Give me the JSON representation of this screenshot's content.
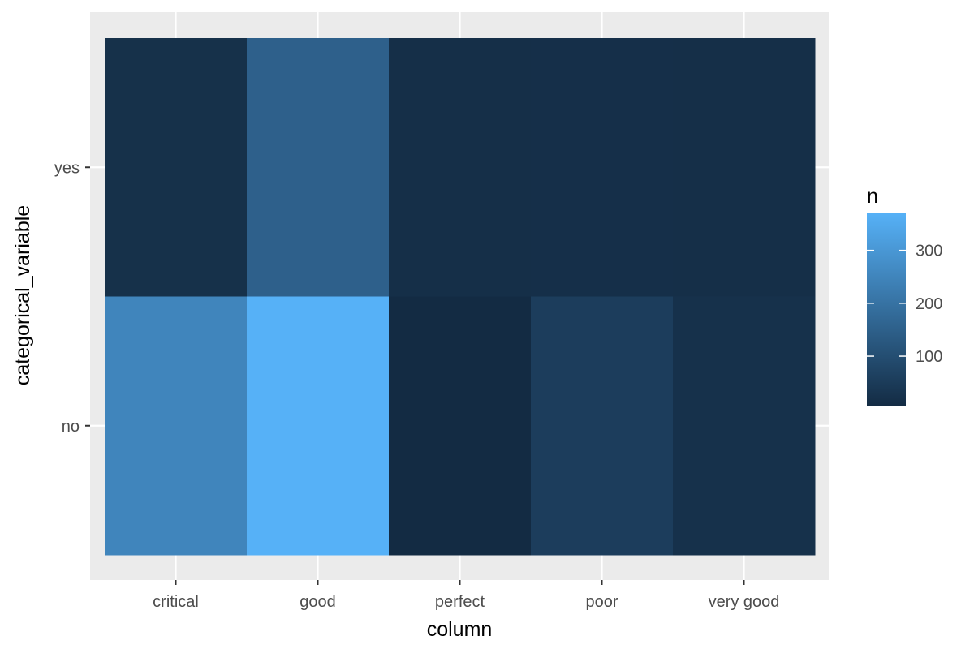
{
  "chart_data": {
    "type": "heatmap",
    "x_categories": [
      "critical",
      "good",
      "perfect",
      "poor",
      "very good"
    ],
    "y_categories": [
      "no",
      "yes"
    ],
    "cells": [
      {
        "x": "critical",
        "y": "yes",
        "n": 20
      },
      {
        "x": "good",
        "y": "yes",
        "n": 150
      },
      {
        "x": "perfect",
        "y": "yes",
        "n": 16
      },
      {
        "x": "poor",
        "y": "yes",
        "n": 17
      },
      {
        "x": "very good",
        "y": "yes",
        "n": 16
      },
      {
        "x": "critical",
        "y": "no",
        "n": 250
      },
      {
        "x": "good",
        "y": "no",
        "n": 370
      },
      {
        "x": "perfect",
        "y": "no",
        "n": 5
      },
      {
        "x": "poor",
        "y": "no",
        "n": 55
      },
      {
        "x": "very good",
        "y": "no",
        "n": 22
      }
    ],
    "xlabel": "column",
    "ylabel": "categorical_variable",
    "legend": {
      "title": "n",
      "ticks": [
        100,
        200,
        300
      ],
      "range": [
        5,
        370
      ],
      "color_low": "#132B43",
      "color_high": "#56B1F7",
      "placement": "right"
    },
    "panel_background": "#EBEBEB",
    "grid": true
  }
}
